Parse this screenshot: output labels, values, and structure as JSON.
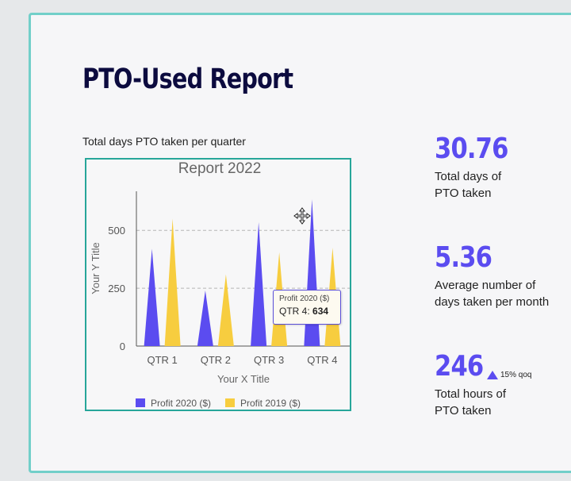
{
  "report": {
    "title": "PTO-Used Report",
    "subtitle": "Total days PTO  taken per quarter"
  },
  "chart_data": {
    "type": "bar",
    "title": "Report 2022",
    "xlabel": "Your X Title",
    "ylabel": "Your Y Title",
    "categories": [
      "QTR 1",
      "QTR 2",
      "QTR 3",
      "QTR 4"
    ],
    "series": [
      {
        "name": "Profit 2020 ($)",
        "color": "#5b4cf0",
        "values": [
          420,
          240,
          535,
          634
        ]
      },
      {
        "name": "Profit 2019 ($)",
        "color": "#f7cd3f",
        "values": [
          550,
          310,
          405,
          425
        ]
      }
    ],
    "yticks": [
      0,
      250,
      500
    ],
    "ylim": [
      0,
      680
    ],
    "grid": true,
    "legend_position": "bottom",
    "bar_shape": "triangle"
  },
  "tooltip": {
    "series": "Profit 2020 ($)",
    "category": "QTR 4:",
    "value": "634"
  },
  "stats": [
    {
      "value": "30.76",
      "label_lines": [
        "Total days of",
        "PTO  taken"
      ]
    },
    {
      "value": "5.36",
      "label_lines": [
        "Average number of",
        "days taken per month"
      ]
    },
    {
      "value": "246",
      "label_lines": [
        "Total hours of",
        "PTO taken"
      ],
      "change": "15% qoq",
      "change_icon": "triangle-up-icon"
    }
  ],
  "colors": {
    "accent": "#5b4cf0",
    "title": "#0c0b3f",
    "border": "#72cfc9",
    "chart_border": "#27a69a",
    "series_2020": "#5b4cf0",
    "series_2019": "#f7cd3f"
  }
}
